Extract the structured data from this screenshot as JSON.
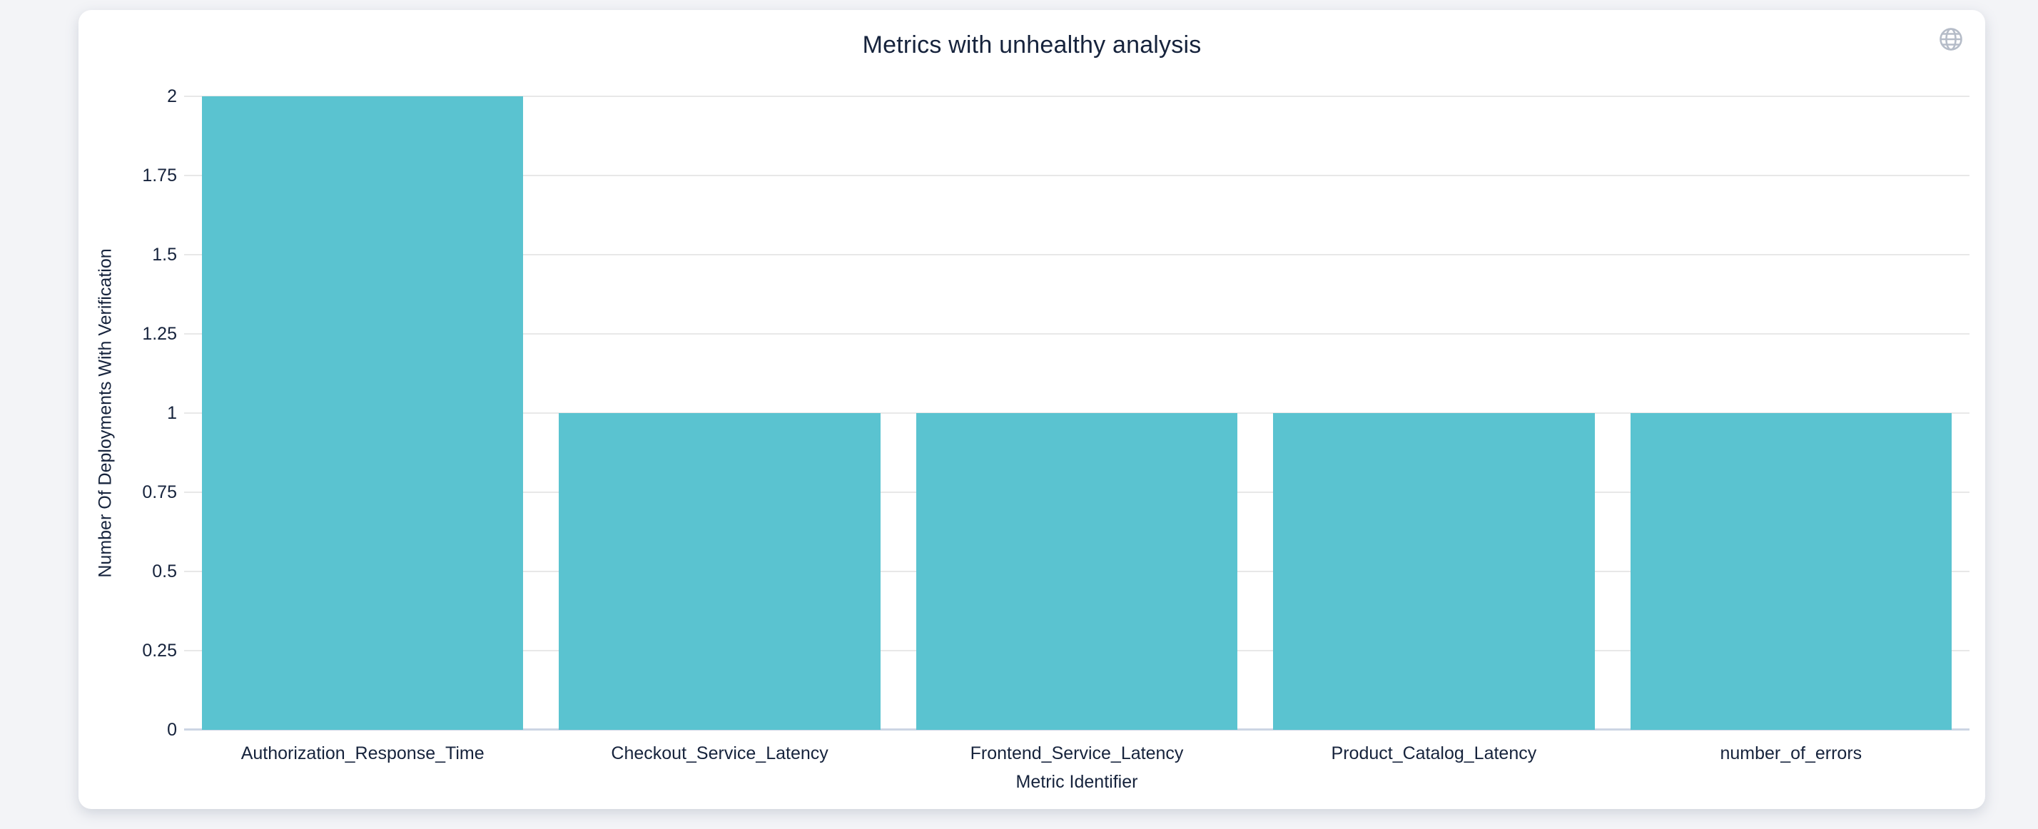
{
  "page": {
    "background_color": "#f3f4f7"
  },
  "card": {
    "title": "Metrics with unhealthy analysis",
    "toolbar": {
      "globe_icon": "globe-icon",
      "globe_color": "#b5bcc8"
    }
  },
  "chart_data": {
    "type": "bar",
    "title": "Metrics with unhealthy analysis",
    "categories": [
      "Authorization_Response_Time",
      "Checkout_Service_Latency",
      "Frontend_Service_Latency",
      "Product_Catalog_Latency",
      "number_of_errors"
    ],
    "values": [
      2,
      1,
      1,
      1,
      1
    ],
    "xlabel": "Metric Identifier",
    "ylabel": "Number Of Deployments With Verification",
    "ylim": [
      0,
      2
    ],
    "ytick_labels": [
      "0",
      "0.25",
      "0.5",
      "0.75",
      "1",
      "1.25",
      "1.5",
      "1.75",
      "2"
    ],
    "grid": true,
    "legend_position": "none",
    "bar_color": "#5ac3d0",
    "grid_color": "#e8e8e8",
    "axis_line_color": "#ccd5e4",
    "text_color": "#16233c",
    "bar_width_fraction": 0.9
  }
}
